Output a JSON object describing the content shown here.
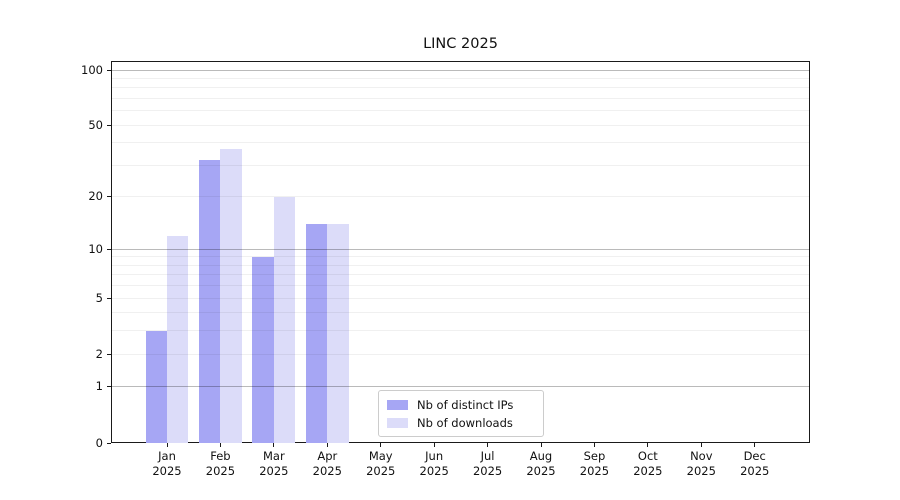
{
  "figure": {
    "title": "LINC 2025"
  },
  "chart_data": {
    "type": "bar",
    "title": "LINC 2025",
    "categories": [
      "Jan",
      "Feb",
      "Mar",
      "Apr",
      "May",
      "Jun",
      "Jul",
      "Aug",
      "Sep",
      "Oct",
      "Nov",
      "Dec"
    ],
    "category_year_line": "2025",
    "series": [
      {
        "name": "Nb of distinct IPs",
        "color": "#a6a6f4",
        "values": [
          3,
          32,
          9,
          14,
          0,
          0,
          0,
          0,
          0,
          0,
          0,
          0
        ]
      },
      {
        "name": "Nb of downloads",
        "color": "#dcdcf9",
        "values": [
          12,
          37,
          20,
          14,
          0,
          0,
          0,
          0,
          0,
          0,
          0,
          0
        ]
      }
    ],
    "yscale": "log1p",
    "ylim": [
      0,
      112
    ],
    "yticks": [
      0,
      1,
      2,
      5,
      10,
      20,
      50,
      100
    ],
    "major_gridlines": [
      1,
      10,
      100
    ],
    "minor_gridlines": [
      2,
      3,
      4,
      6,
      7,
      8,
      9,
      5,
      20,
      30,
      40,
      60,
      70,
      80,
      90,
      50
    ],
    "grid": true,
    "legend_position": "lower center",
    "colors": {
      "spine": "#1a1a1a",
      "series_ips": "#a6a6f4",
      "series_downloads": "#dcdcf9"
    }
  }
}
